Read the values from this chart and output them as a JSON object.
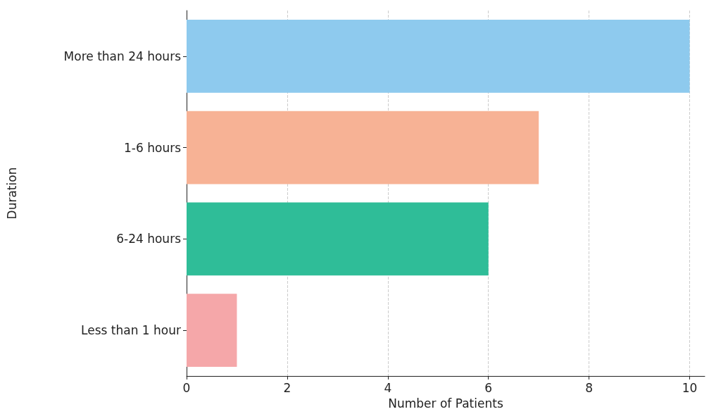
{
  "chart_data": {
    "type": "bar",
    "orientation": "horizontal",
    "xlabel": "Number of Patients",
    "ylabel": "Duration",
    "categories": [
      "More than 24 hours",
      "1-6 hours",
      "6-24 hours",
      "Less than 1 hour"
    ],
    "values": [
      10,
      7,
      6,
      1
    ],
    "colors": [
      "#8ecaee",
      "#f7b295",
      "#2fbd98",
      "#f5a7a9"
    ],
    "xlim": [
      0,
      10.3
    ],
    "xticks": [
      0,
      2,
      4,
      6,
      8,
      10
    ],
    "grid": "x"
  }
}
